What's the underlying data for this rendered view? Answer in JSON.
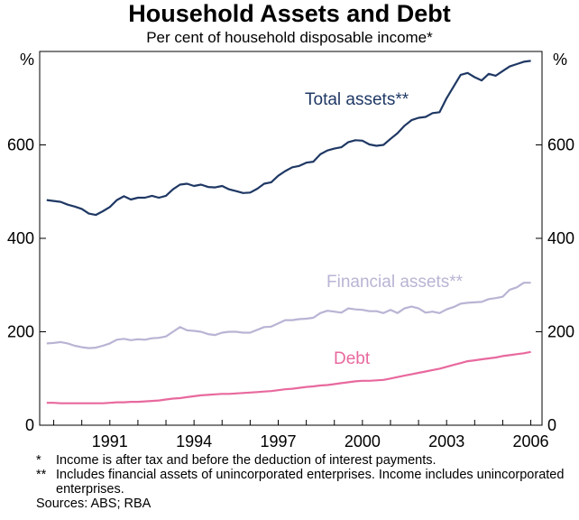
{
  "chart_data": {
    "type": "line",
    "title": "Household Assets and Debt",
    "subtitle": "Per cent of household disposable income*",
    "y_unit_left": "%",
    "y_unit_right": "%",
    "ylim": [
      0,
      800
    ],
    "y_ticks": [
      0,
      200,
      400,
      600
    ],
    "xlim": [
      1988.5,
      2006.4
    ],
    "x_ticks": [
      1991,
      1994,
      1997,
      2000,
      2003,
      2006
    ],
    "grid": false,
    "series": [
      {
        "name": "Total assets**",
        "color": "#1f3864",
        "x": [
          1988.75,
          1989,
          1989.25,
          1989.5,
          1989.75,
          1990,
          1990.25,
          1990.5,
          1990.75,
          1991,
          1991.25,
          1991.5,
          1991.75,
          1992,
          1992.25,
          1992.5,
          1992.75,
          1993,
          1993.25,
          1993.5,
          1993.75,
          1994,
          1994.25,
          1994.5,
          1994.75,
          1995,
          1995.25,
          1995.5,
          1995.75,
          1996,
          1996.25,
          1996.5,
          1996.75,
          1997,
          1997.25,
          1997.5,
          1997.75,
          1998,
          1998.25,
          1998.5,
          1998.75,
          1999,
          1999.25,
          1999.5,
          1999.75,
          2000,
          2000.25,
          2000.5,
          2000.75,
          2001,
          2001.25,
          2001.5,
          2001.75,
          2002,
          2002.25,
          2002.5,
          2002.75,
          2003,
          2003.25,
          2003.5,
          2003.75,
          2004,
          2004.25,
          2004.5,
          2004.75,
          2005,
          2005.25,
          2005.5,
          2005.75,
          2006
        ],
        "values": [
          482,
          480,
          478,
          472,
          468,
          463,
          453,
          450,
          458,
          467,
          482,
          490,
          483,
          487,
          487,
          491,
          487,
          491,
          505,
          515,
          517,
          512,
          515,
          510,
          509,
          512,
          505,
          501,
          497,
          498,
          506,
          517,
          520,
          534,
          544,
          552,
          555,
          562,
          564,
          580,
          588,
          592,
          595,
          606,
          610,
          609,
          601,
          598,
          600,
          613,
          625,
          641,
          653,
          658,
          660,
          668,
          670,
          700,
          725,
          750,
          754,
          745,
          738,
          752,
          748,
          758,
          768,
          773,
          778,
          780
        ]
      },
      {
        "name": "Financial assets**",
        "color": "#b9b4d4",
        "x": [
          1988.75,
          1989,
          1989.25,
          1989.5,
          1989.75,
          1990,
          1990.25,
          1990.5,
          1990.75,
          1991,
          1991.25,
          1991.5,
          1991.75,
          1992,
          1992.25,
          1992.5,
          1992.75,
          1993,
          1993.25,
          1993.5,
          1993.75,
          1994,
          1994.25,
          1994.5,
          1994.75,
          1995,
          1995.25,
          1995.5,
          1995.75,
          1996,
          1996.25,
          1996.5,
          1996.75,
          1997,
          1997.25,
          1997.5,
          1997.75,
          1998,
          1998.25,
          1998.5,
          1998.75,
          1999,
          1999.25,
          1999.5,
          1999.75,
          2000,
          2000.25,
          2000.5,
          2000.75,
          2001,
          2001.25,
          2001.5,
          2001.75,
          2002,
          2002.25,
          2002.5,
          2002.75,
          2003,
          2003.25,
          2003.5,
          2003.75,
          2004,
          2004.25,
          2004.5,
          2004.75,
          2005,
          2005.25,
          2005.5,
          2005.75,
          2006
        ],
        "values": [
          175,
          176,
          178,
          175,
          170,
          167,
          165,
          166,
          170,
          175,
          183,
          185,
          182,
          184,
          183,
          186,
          187,
          190,
          200,
          210,
          203,
          202,
          200,
          195,
          193,
          198,
          200,
          200,
          198,
          198,
          204,
          210,
          211,
          218,
          225,
          225,
          227,
          228,
          230,
          240,
          245,
          243,
          241,
          250,
          248,
          247,
          244,
          244,
          240,
          247,
          240,
          250,
          254,
          250,
          241,
          243,
          240,
          248,
          253,
          260,
          262,
          263,
          264,
          270,
          272,
          275,
          290,
          295,
          305,
          305
        ]
      },
      {
        "name": "Debt",
        "color": "#e8699e",
        "x": [
          1988.75,
          1989,
          1989.25,
          1989.5,
          1989.75,
          1990,
          1990.25,
          1990.5,
          1990.75,
          1991,
          1991.25,
          1991.5,
          1991.75,
          1992,
          1992.25,
          1992.5,
          1992.75,
          1993,
          1993.25,
          1993.5,
          1993.75,
          1994,
          1994.25,
          1994.5,
          1994.75,
          1995,
          1995.25,
          1995.5,
          1995.75,
          1996,
          1996.25,
          1996.5,
          1996.75,
          1997,
          1997.25,
          1997.5,
          1997.75,
          1998,
          1998.25,
          1998.5,
          1998.75,
          1999,
          1999.25,
          1999.5,
          1999.75,
          2000,
          2000.25,
          2000.5,
          2000.75,
          2001,
          2001.25,
          2001.5,
          2001.75,
          2002,
          2002.25,
          2002.5,
          2002.75,
          2003,
          2003.25,
          2003.5,
          2003.75,
          2004,
          2004.25,
          2004.5,
          2004.75,
          2005,
          2005.25,
          2005.5,
          2005.75,
          2006
        ],
        "values": [
          48,
          48,
          47,
          47,
          47,
          47,
          47,
          47,
          47,
          48,
          49,
          49,
          50,
          50,
          51,
          52,
          53,
          55,
          57,
          58,
          60,
          62,
          64,
          65,
          66,
          67,
          67,
          68,
          69,
          70,
          71,
          72,
          73,
          75,
          77,
          78,
          80,
          82,
          83,
          85,
          86,
          88,
          90,
          92,
          94,
          95,
          95,
          96,
          97,
          100,
          103,
          106,
          109,
          112,
          115,
          118,
          121,
          125,
          129,
          133,
          137,
          139,
          141,
          143,
          145,
          148,
          150,
          152,
          154,
          157
        ]
      }
    ]
  },
  "labels": {
    "total_assets": "Total assets**",
    "financial_assets": "Financial assets**",
    "debt": "Debt"
  },
  "notes": [
    {
      "mark": "*",
      "text": "Income is after tax and before the deduction of interest payments."
    },
    {
      "mark": "**",
      "text": "Includes financial assets of unincorporated enterprises. Income includes unincorporated enterprises."
    }
  ],
  "sources": "Sources: ABS; RBA"
}
